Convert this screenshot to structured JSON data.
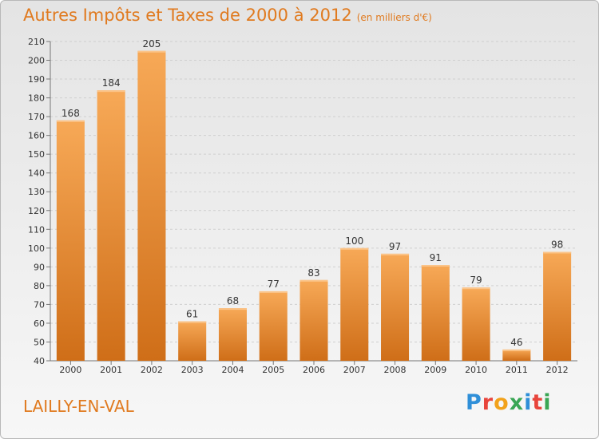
{
  "header": {
    "title": "Autres Impôts et Taxes de 2000 à 2012",
    "subtitle": "(en milliers d'€)"
  },
  "footer": {
    "commune": "LAILLY-EN-VAL",
    "logo_text": "Proxiti"
  },
  "colors": {
    "accent": "#e07a1f",
    "bar_light": "#f6a552",
    "bar_dark": "#d0701a"
  },
  "chart_data": {
    "type": "bar",
    "title": "Autres Impôts et Taxes de 2000 à 2012",
    "subtitle": "(en milliers d'€)",
    "categories": [
      "2000",
      "2001",
      "2002",
      "2003",
      "2004",
      "2005",
      "2006",
      "2007",
      "2008",
      "2009",
      "2010",
      "2011",
      "2012"
    ],
    "values": [
      168,
      184,
      205,
      61,
      68,
      77,
      83,
      100,
      97,
      91,
      79,
      46,
      98
    ],
    "data_labels": [
      "168",
      "184",
      "205",
      "61",
      "68",
      "77",
      "83",
      "100",
      "97",
      "91",
      "79",
      "46",
      "98"
    ],
    "ylim": [
      40,
      210
    ],
    "yticks": [
      40,
      50,
      60,
      70,
      80,
      90,
      100,
      110,
      120,
      130,
      140,
      150,
      160,
      170,
      180,
      190,
      200,
      210
    ],
    "xlabel": "",
    "ylabel": "",
    "grid": true,
    "legend": "none"
  }
}
